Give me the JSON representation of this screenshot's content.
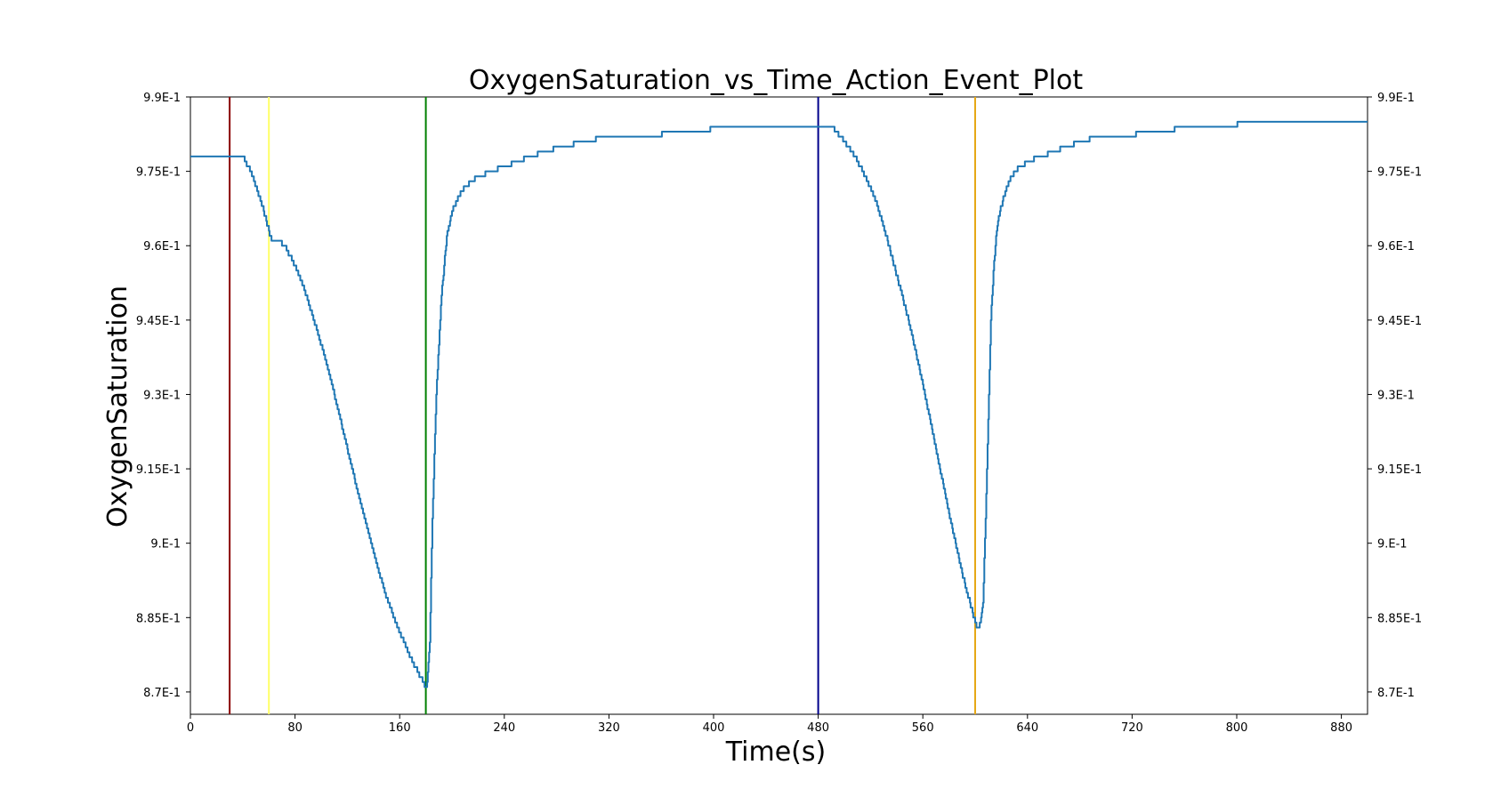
{
  "chart_data": {
    "type": "line",
    "title": "OxygenSaturation_vs_Time_Action_Event_Plot",
    "xlabel": "Time(s)",
    "ylabel": "OxygenSaturation",
    "xlim": [
      0,
      900
    ],
    "ylim": [
      0.8655,
      0.99
    ],
    "grid": false,
    "x_ticks": [
      0,
      80,
      160,
      240,
      320,
      400,
      480,
      560,
      640,
      720,
      800,
      880
    ],
    "x_tick_labels": [
      "0",
      "80",
      "160",
      "240",
      "320",
      "400",
      "480",
      "560",
      "640",
      "720",
      "800",
      "880"
    ],
    "y_ticks": [
      0.87,
      0.885,
      0.9,
      0.915,
      0.93,
      0.945,
      0.96,
      0.975,
      0.99
    ],
    "y_tick_labels": [
      "8.7E-1",
      "8.85E-1",
      "9.E-1",
      "9.15E-1",
      "9.3E-1",
      "9.45E-1",
      "9.6E-1",
      "9.75E-1",
      "9.9E-1"
    ],
    "series": [
      {
        "color": "#1f77b4",
        "step": 0.001,
        "x": [
          0,
          40,
          42,
          46,
          50,
          54,
          58,
          60,
          62,
          68,
          72,
          76,
          80,
          86,
          92,
          100,
          110,
          120,
          130,
          140,
          150,
          160,
          170,
          176,
          180,
          181,
          183,
          185,
          188,
          192,
          196,
          200,
          205,
          210,
          215,
          220,
          230,
          240,
          250,
          260,
          270,
          285,
          300,
          320,
          345,
          375,
          420,
          490,
          494,
          500,
          508,
          516,
          524,
          532,
          540,
          550,
          560,
          570,
          580,
          590,
          596,
          600,
          602,
          604,
          606,
          608,
          610,
          612,
          614,
          616,
          618,
          622,
          626,
          630,
          635,
          640,
          650,
          660,
          670,
          680,
          695,
          710,
          735,
          770,
          830,
          900
        ],
        "y": [
          0.978,
          0.978,
          0.977,
          0.975,
          0.972,
          0.969,
          0.965,
          0.963,
          0.961,
          0.961,
          0.96,
          0.958,
          0.956,
          0.952,
          0.947,
          0.94,
          0.93,
          0.919,
          0.908,
          0.898,
          0.889,
          0.882,
          0.876,
          0.873,
          0.871,
          0.872,
          0.88,
          0.905,
          0.93,
          0.95,
          0.962,
          0.967,
          0.97,
          0.972,
          0.973,
          0.974,
          0.975,
          0.976,
          0.977,
          0.978,
          0.979,
          0.98,
          0.981,
          0.982,
          0.982,
          0.983,
          0.984,
          0.984,
          0.983,
          0.981,
          0.978,
          0.974,
          0.969,
          0.962,
          0.954,
          0.944,
          0.932,
          0.919,
          0.906,
          0.894,
          0.888,
          0.884,
          0.883,
          0.884,
          0.888,
          0.905,
          0.925,
          0.945,
          0.955,
          0.962,
          0.966,
          0.97,
          0.973,
          0.975,
          0.976,
          0.977,
          0.978,
          0.979,
          0.98,
          0.981,
          0.982,
          0.982,
          0.983,
          0.984,
          0.985,
          0.985
        ]
      }
    ],
    "event_lines": [
      {
        "x": 30,
        "color": "#8b0000"
      },
      {
        "x": 60,
        "color": "#ffff66"
      },
      {
        "x": 180,
        "color": "#008000"
      },
      {
        "x": 480,
        "color": "#00008b"
      },
      {
        "x": 600,
        "color": "#e6a817"
      }
    ]
  }
}
